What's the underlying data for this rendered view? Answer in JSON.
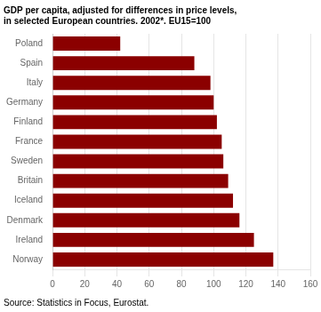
{
  "chart_data": {
    "type": "bar",
    "orientation": "horizontal",
    "title": [
      "GDP per capita, adjusted for differences in price levels,",
      "in selected European countries. 2002*. EU15=100"
    ],
    "source": "Source: Statistics in Focus, Eurostat.",
    "categories": [
      "Poland",
      "Spain",
      "Italy",
      "Germany",
      "Finland",
      "France",
      "Sweden",
      "Britain",
      "Iceland",
      "Denmark",
      "Ireland",
      "Norway"
    ],
    "values": [
      42,
      88,
      98,
      100,
      102,
      105,
      106,
      109,
      112,
      116,
      125,
      137
    ],
    "color": "#8B0000",
    "xlim": [
      0,
      160
    ],
    "xticks": [
      0,
      20,
      40,
      60,
      80,
      100,
      120,
      140,
      160
    ],
    "grid": true
  }
}
